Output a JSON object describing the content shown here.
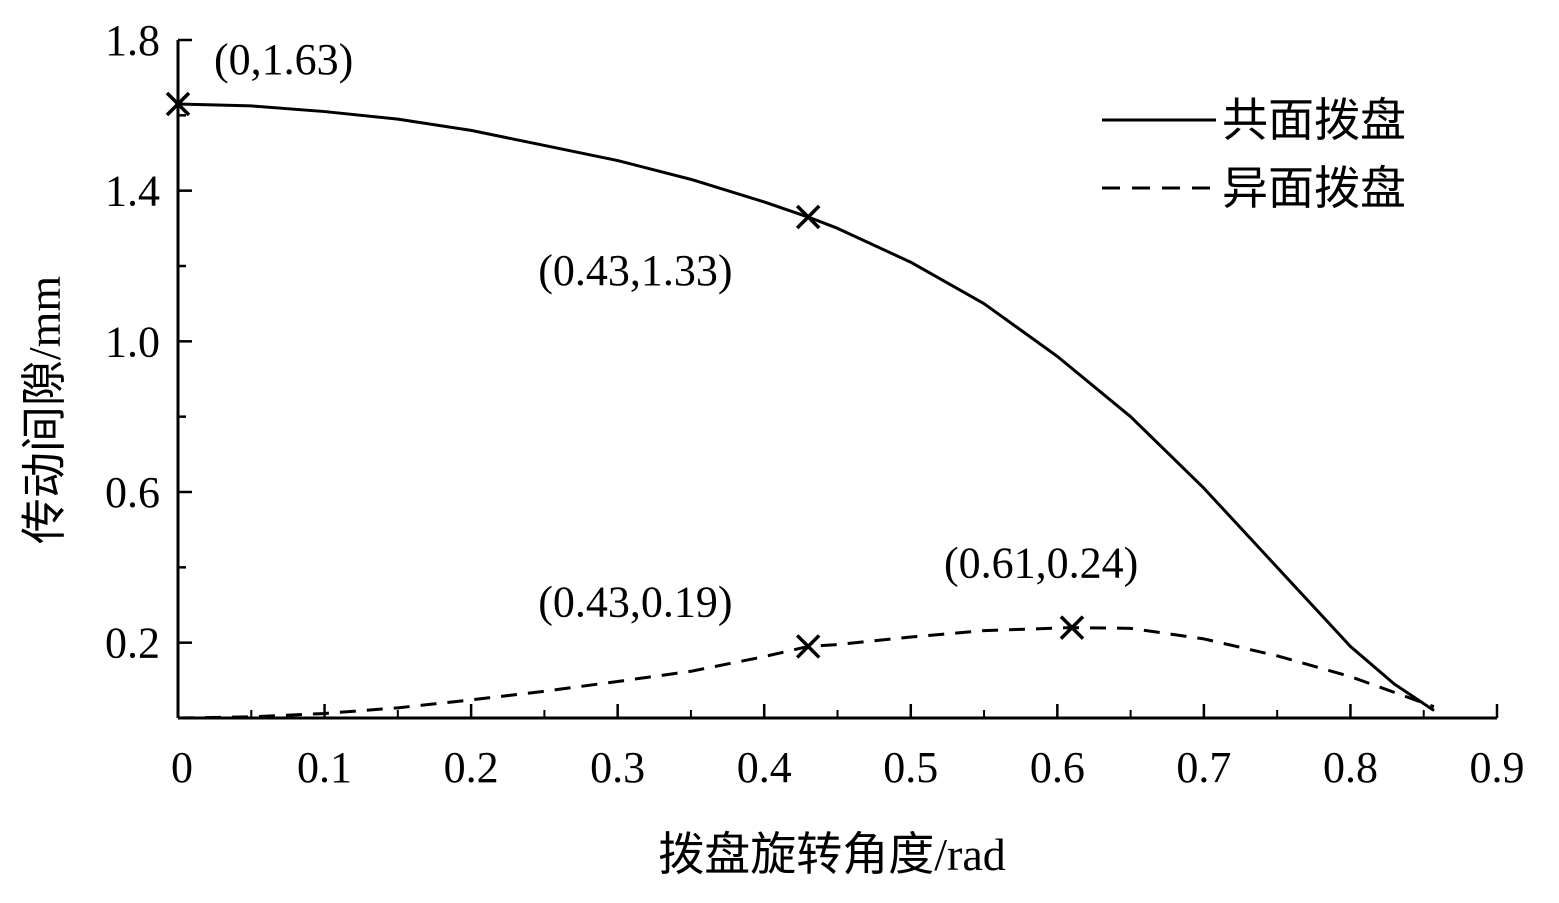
{
  "chart_data": {
    "type": "line",
    "xlabel": "拨盘旋转角度/rad",
    "ylabel": "传动间隙/mm",
    "xlim": [
      0,
      0.9
    ],
    "ylim": [
      0,
      1.8
    ],
    "x_ticks": [
      "0",
      "0.1",
      "0.2",
      "0.3",
      "0.4",
      "0.5",
      "0.6",
      "0.7",
      "0.8",
      "0.9"
    ],
    "y_ticks": [
      "0.2",
      "0.6",
      "1.0",
      "1.4",
      "1.8"
    ],
    "grid": false,
    "legend_position": "top-right",
    "series": [
      {
        "name": "共面拨盘",
        "style": "solid",
        "x": [
          0,
          0.05,
          0.1,
          0.15,
          0.2,
          0.25,
          0.3,
          0.35,
          0.4,
          0.43,
          0.45,
          0.5,
          0.55,
          0.6,
          0.65,
          0.7,
          0.75,
          0.8,
          0.83,
          0.857
        ],
        "y": [
          1.63,
          1.625,
          1.61,
          1.59,
          1.56,
          1.52,
          1.48,
          1.43,
          1.37,
          1.33,
          1.3,
          1.21,
          1.1,
          0.96,
          0.8,
          0.61,
          0.4,
          0.19,
          0.09,
          0.02
        ]
      },
      {
        "name": "异面拨盘",
        "style": "dashed",
        "x": [
          0,
          0.05,
          0.1,
          0.15,
          0.2,
          0.25,
          0.3,
          0.35,
          0.4,
          0.43,
          0.45,
          0.5,
          0.55,
          0.61,
          0.65,
          0.7,
          0.75,
          0.8,
          0.857
        ],
        "y": [
          0.0,
          0.003,
          0.012,
          0.027,
          0.048,
          0.071,
          0.097,
          0.124,
          0.163,
          0.19,
          0.195,
          0.215,
          0.232,
          0.24,
          0.238,
          0.21,
          0.165,
          0.11,
          0.03
        ]
      }
    ],
    "annotations": [
      {
        "x": 0,
        "y": 1.63,
        "text": "(0,1.63)",
        "marker": "x"
      },
      {
        "x": 0.43,
        "y": 1.33,
        "text": "(0.43,1.33)",
        "marker": "x"
      },
      {
        "x": 0.43,
        "y": 0.19,
        "text": "(0.43,0.19)",
        "marker": "x"
      },
      {
        "x": 0.61,
        "y": 0.24,
        "text": "(0.61,0.24)",
        "marker": "x"
      }
    ]
  }
}
